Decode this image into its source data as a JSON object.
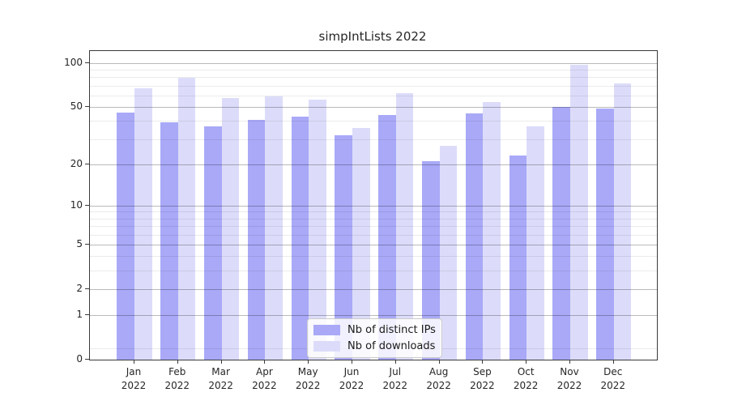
{
  "title": "simpIntLists 2022",
  "legend": {
    "items": [
      {
        "label": "Nb of distinct IPs",
        "color": "#a9a9f8"
      },
      {
        "label": "Nb of downloads",
        "color": "#dcdcfa"
      }
    ]
  },
  "chart_data": {
    "type": "bar",
    "title": "simpIntLists 2022",
    "categories": [
      "Jan 2022",
      "Feb 2022",
      "Mar 2022",
      "Apr 2022",
      "May 2022",
      "Jun 2022",
      "Jul 2022",
      "Aug 2022",
      "Sep 2022",
      "Oct 2022",
      "Nov 2022",
      "Dec 2022"
    ],
    "x_tick_months": [
      "Jan",
      "Feb",
      "Mar",
      "Apr",
      "May",
      "Jun",
      "Jul",
      "Aug",
      "Sep",
      "Oct",
      "Nov",
      "Dec"
    ],
    "x_tick_year": "2022",
    "series": [
      {
        "name": "Nb of distinct IPs",
        "color": "#a9a9f8",
        "values": [
          46,
          39,
          37,
          41,
          43,
          32,
          44,
          21,
          45,
          23,
          50,
          49
        ]
      },
      {
        "name": "Nb of downloads",
        "color": "#dcdcfa",
        "values": [
          67,
          79,
          58,
          59,
          56,
          36,
          62,
          27,
          54,
          37,
          97,
          73
        ]
      }
    ],
    "xlabel": "",
    "ylabel": "",
    "yscale": "log1p",
    "ylim": [
      0,
      121
    ],
    "y_ticks": [
      100,
      50,
      20,
      10,
      5,
      2,
      1,
      0
    ],
    "y_minor_gridlines": [
      0.2,
      3,
      4,
      6,
      7,
      8,
      9,
      30,
      40,
      60,
      70,
      80,
      90
    ],
    "grid": true,
    "legend_position": "lower center"
  },
  "colors": {
    "bar_distinct_ips": "#a9a9f8",
    "bar_downloads": "#dcdcfa",
    "major_grid": "rgba(0,0,0,0.27)",
    "minor_grid": "rgba(0,0,0,0.08)",
    "spine": "#3a3a3a",
    "text": "#262626",
    "legend_border": "#cccccc"
  }
}
